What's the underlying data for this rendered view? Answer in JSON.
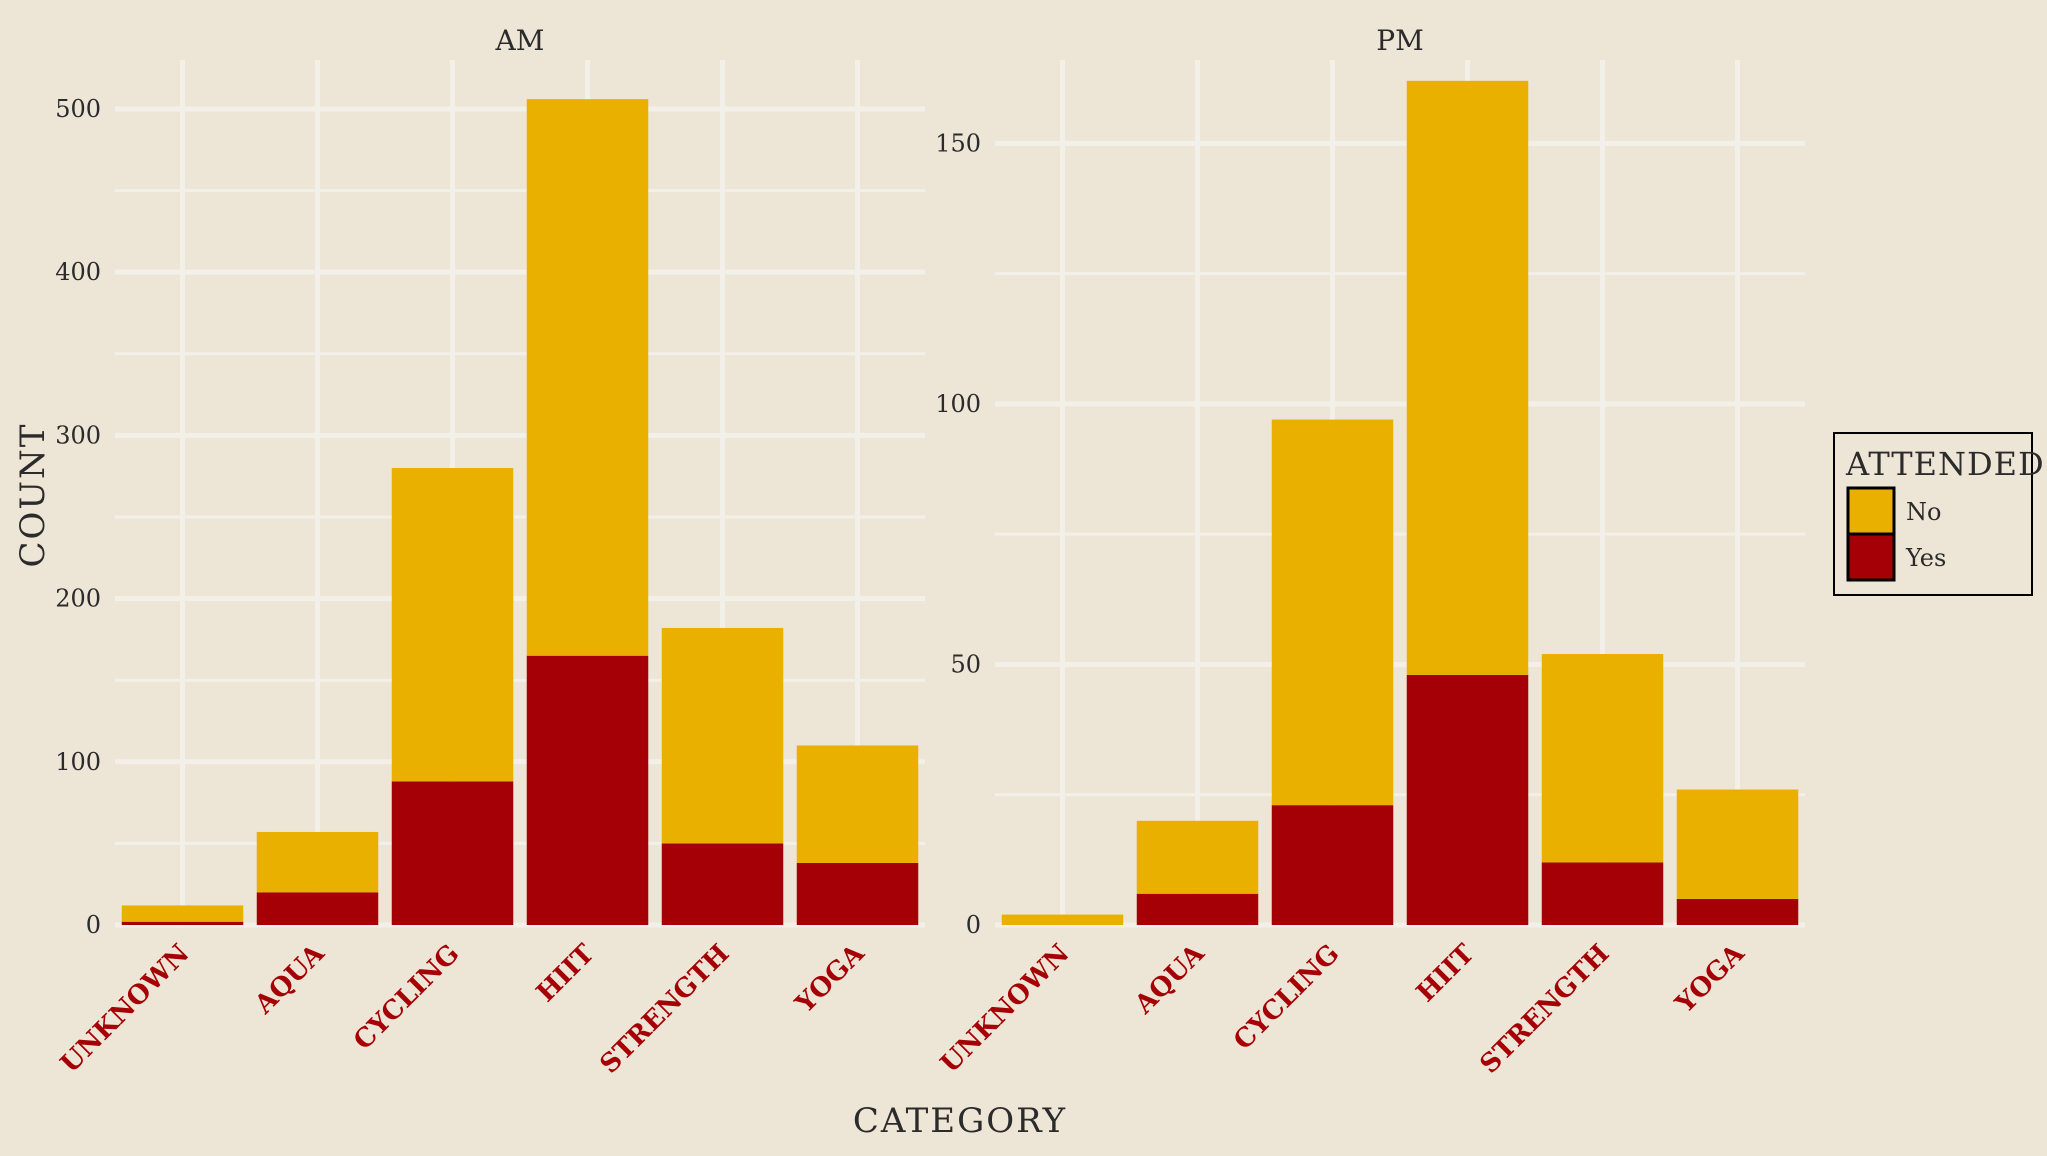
{
  "chart_data": {
    "type": "bar",
    "stacked": true,
    "xlabel": "category",
    "ylabel": "count",
    "categories": [
      "unknown",
      "aqua",
      "cycling",
      "HIIT",
      "strength",
      "yoga"
    ],
    "legend": {
      "title": "attended",
      "placement": "right",
      "entries": [
        {
          "label": "No",
          "color": "#EAB000"
        },
        {
          "label": "Yes",
          "color": "#A50005"
        }
      ]
    },
    "grid": true,
    "panels": [
      {
        "title": "AM",
        "ylim": [
          0,
          530
        ],
        "yticks": [
          0,
          100,
          200,
          300,
          400,
          500
        ],
        "series": [
          {
            "name": "No",
            "values": [
              10,
              37,
              192,
              341,
              132,
              72
            ]
          },
          {
            "name": "Yes",
            "values": [
              2,
              20,
              88,
              165,
              50,
              38
            ]
          }
        ]
      },
      {
        "title": "PM",
        "ylim": [
          0,
          166
        ],
        "yticks": [
          0,
          50,
          100,
          150
        ],
        "series": [
          {
            "name": "No",
            "values": [
              2,
              14,
              74,
              114,
              40,
              21
            ]
          },
          {
            "name": "Yes",
            "values": [
              0,
              6,
              23,
              48,
              12,
              5
            ]
          }
        ]
      }
    ]
  }
}
